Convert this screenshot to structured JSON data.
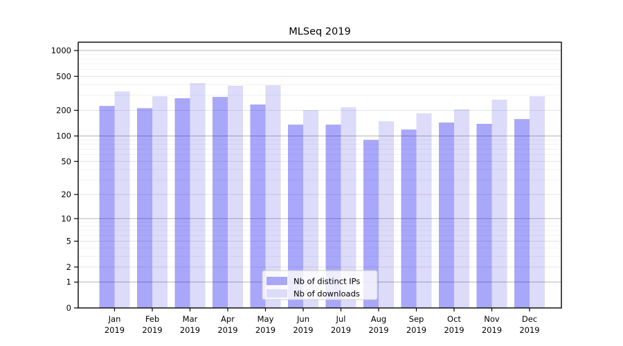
{
  "title": "MLSeq 2019",
  "colors": {
    "ips_bar_fill": "rgba(10,8,237,0.355)",
    "downloads_bar_fill": "rgba(35,30,215,0.16)",
    "ips_swatch": "#a8a7f8",
    "downloads_swatch": "#dcdbf9",
    "spine": "#000000",
    "grid_decade": "#b4b4b4",
    "grid_major": "#e4e4e4",
    "grid_minor": "#f1f1f1",
    "legend_border": "#cccccc",
    "legend_bg": "rgba(255,255,255,0.8)"
  },
  "chart_data": {
    "type": "bar",
    "title": "MLSeq 2019",
    "categories": [
      "Jan",
      "Feb",
      "Mar",
      "Apr",
      "May",
      "Jun",
      "Jul",
      "Aug",
      "Sep",
      "Oct",
      "Nov",
      "Dec"
    ],
    "year": "2019",
    "series": [
      {
        "name": "Nb of distinct IPs",
        "values": [
          225,
          212,
          277,
          287,
          234,
          136,
          136,
          90,
          119,
          144,
          139,
          158
        ]
      },
      {
        "name": "Nb of downloads",
        "values": [
          333,
          292,
          417,
          388,
          394,
          201,
          217,
          149,
          184,
          206,
          267,
          292
        ]
      }
    ],
    "y_scale": "log10(value+1)",
    "y_ticks": [
      1000,
      500,
      200,
      100,
      50,
      20,
      10,
      5,
      2,
      1,
      0
    ],
    "y_minor_ticks": [
      3,
      4,
      6,
      7,
      8,
      9,
      30,
      40,
      60,
      70,
      80,
      90,
      300,
      400,
      600,
      700,
      800,
      900
    ],
    "y_decade_lines": [
      1,
      10,
      100,
      1000
    ],
    "ylim": [
      0,
      1200
    ],
    "grid": true,
    "legend_position": "lower-center"
  }
}
